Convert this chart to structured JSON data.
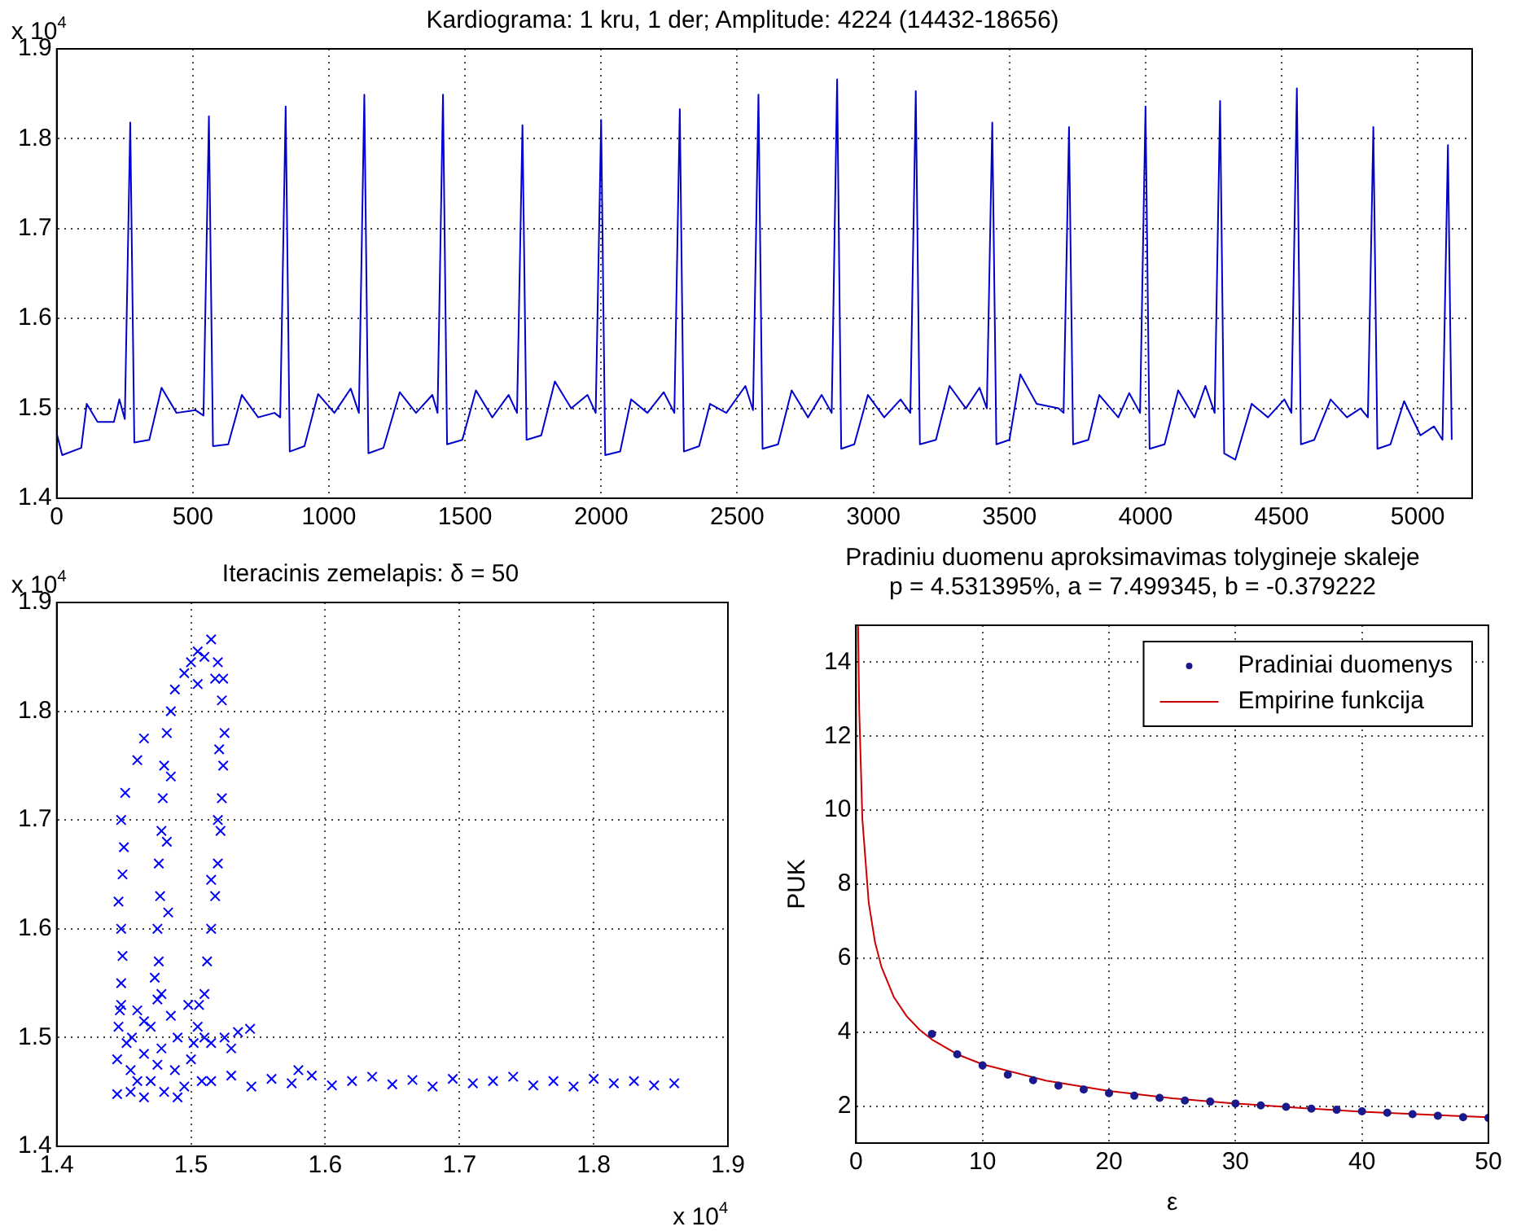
{
  "chart_data": [
    {
      "type": "line",
      "title": "Kardiograma: 1 kru, 1 der; Amplitude: 4224 (14432-18656)",
      "color": "#0000cc",
      "grid": true,
      "annotations": [
        "x 10$^{4}$"
      ],
      "xlim": [
        0,
        5200
      ],
      "xticks": [
        0,
        500,
        1000,
        1500,
        2000,
        2500,
        3000,
        3500,
        4000,
        4500,
        5000
      ],
      "ylim": [
        1.4,
        1.9
      ],
      "yticks": [
        1.4,
        1.5,
        1.6,
        1.7,
        1.8,
        1.9
      ],
      "x": [
        0,
        20,
        90,
        110,
        150,
        210,
        230,
        250,
        270,
        285,
        340,
        385,
        440,
        510,
        539,
        559,
        574,
        630,
        680,
        740,
        800,
        821,
        841,
        856,
        910,
        960,
        1020,
        1080,
        1110,
        1130,
        1145,
        1200,
        1260,
        1320,
        1380,
        1399,
        1419,
        1434,
        1490,
        1540,
        1600,
        1660,
        1691,
        1711,
        1726,
        1780,
        1830,
        1890,
        1950,
        1980,
        2000,
        2015,
        2070,
        2110,
        2170,
        2230,
        2269,
        2289,
        2304,
        2360,
        2400,
        2460,
        2530,
        2558,
        2578,
        2593,
        2650,
        2700,
        2760,
        2810,
        2847,
        2867,
        2882,
        2930,
        2980,
        3040,
        3100,
        3136,
        3156,
        3171,
        3230,
        3280,
        3340,
        3390,
        3417,
        3437,
        3452,
        3500,
        3540,
        3600,
        3680,
        3699,
        3719,
        3734,
        3790,
        3830,
        3900,
        3940,
        3980,
        4000,
        4015,
        4070,
        4120,
        4180,
        4220,
        4254,
        4274,
        4289,
        4330,
        4390,
        4450,
        4510,
        4536,
        4556,
        4571,
        4620,
        4680,
        4740,
        4790,
        4817,
        4837,
        4852,
        4900,
        4950,
        5010,
        5060,
        5091,
        5111,
        5125
      ],
      "values": [
        1.472,
        1.448,
        1.456,
        1.505,
        1.485,
        1.485,
        1.51,
        1.488,
        1.818,
        1.462,
        1.465,
        1.523,
        1.495,
        1.498,
        1.492,
        1.825,
        1.458,
        1.46,
        1.515,
        1.49,
        1.495,
        1.49,
        1.836,
        1.452,
        1.458,
        1.516,
        1.495,
        1.522,
        1.495,
        1.849,
        1.45,
        1.456,
        1.518,
        1.495,
        1.515,
        1.495,
        1.849,
        1.46,
        1.465,
        1.52,
        1.49,
        1.515,
        1.495,
        1.815,
        1.465,
        1.47,
        1.53,
        1.5,
        1.515,
        1.495,
        1.821,
        1.448,
        1.452,
        1.51,
        1.495,
        1.518,
        1.495,
        1.833,
        1.452,
        1.458,
        1.505,
        1.495,
        1.525,
        1.498,
        1.849,
        1.455,
        1.46,
        1.52,
        1.49,
        1.515,
        1.495,
        1.866,
        1.455,
        1.46,
        1.515,
        1.49,
        1.51,
        1.495,
        1.853,
        1.46,
        1.465,
        1.525,
        1.5,
        1.523,
        1.5,
        1.818,
        1.46,
        1.465,
        1.538,
        1.505,
        1.5,
        1.495,
        1.813,
        1.46,
        1.465,
        1.515,
        1.49,
        1.517,
        1.495,
        1.836,
        1.455,
        1.46,
        1.52,
        1.49,
        1.525,
        1.495,
        1.842,
        1.45,
        1.443,
        1.505,
        1.49,
        1.51,
        1.495,
        1.856,
        1.46,
        1.465,
        1.51,
        1.49,
        1.5,
        1.49,
        1.813,
        1.455,
        1.46,
        1.508,
        1.47,
        1.48,
        1.465,
        1.793,
        1.465
      ]
    },
    {
      "type": "scatter",
      "title": "Iteracinis zemelapis: δ = 50",
      "color": "#0000ff",
      "marker": "cross",
      "grid": true,
      "annotations": [
        "x 10$^{4}$",
        "x 10$^{4}$"
      ],
      "xlim": [
        1.4,
        1.9
      ],
      "xticks": [
        1.4,
        1.5,
        1.6,
        1.7,
        1.8,
        1.9
      ],
      "ylim": [
        1.4,
        1.9
      ],
      "yticks": [
        1.4,
        1.5,
        1.6,
        1.7,
        1.8,
        1.9
      ],
      "x": [
        1.445,
        1.445,
        1.446,
        1.448,
        1.455,
        1.455,
        1.456,
        1.46,
        1.465,
        1.465,
        1.47,
        1.47,
        1.475,
        1.478,
        1.48,
        1.485,
        1.488,
        1.49,
        1.495,
        1.498,
        1.5,
        1.505,
        1.508,
        1.51,
        1.46,
        1.475,
        1.452,
        1.49,
        1.502,
        1.465,
        1.515,
        1.53,
        1.545,
        1.56,
        1.575,
        1.59,
        1.605,
        1.62,
        1.635,
        1.65,
        1.665,
        1.68,
        1.695,
        1.71,
        1.725,
        1.74,
        1.755,
        1.77,
        1.785,
        1.8,
        1.815,
        1.83,
        1.845,
        1.86,
        1.58,
        1.515,
        1.525,
        1.535,
        1.544,
        1.53,
        1.478,
        1.476,
        1.475,
        1.477,
        1.476,
        1.478,
        1.479,
        1.48,
        1.482,
        1.485,
        1.488,
        1.473,
        1.483,
        1.482,
        1.485,
        1.51,
        1.512,
        1.515,
        1.518,
        1.52,
        1.522,
        1.523,
        1.524,
        1.525,
        1.523,
        1.506,
        1.515,
        1.52,
        1.521,
        1.524,
        1.495,
        1.5,
        1.505,
        1.51,
        1.515,
        1.52,
        1.505,
        1.518,
        1.447,
        1.448,
        1.449,
        1.448,
        1.446,
        1.449,
        1.45,
        1.448,
        1.451,
        1.46,
        1.465
      ],
      "values": [
        1.448,
        1.48,
        1.51,
        1.53,
        1.45,
        1.47,
        1.5,
        1.525,
        1.445,
        1.485,
        1.51,
        1.46,
        1.535,
        1.49,
        1.45,
        1.52,
        1.47,
        1.5,
        1.455,
        1.53,
        1.48,
        1.51,
        1.46,
        1.5,
        1.46,
        1.475,
        1.495,
        1.445,
        1.495,
        1.515,
        1.46,
        1.465,
        1.455,
        1.462,
        1.458,
        1.465,
        1.456,
        1.46,
        1.464,
        1.457,
        1.461,
        1.455,
        1.462,
        1.458,
        1.46,
        1.464,
        1.456,
        1.46,
        1.455,
        1.462,
        1.458,
        1.46,
        1.456,
        1.458,
        1.47,
        1.495,
        1.5,
        1.505,
        1.508,
        1.49,
        1.54,
        1.57,
        1.6,
        1.63,
        1.66,
        1.69,
        1.72,
        1.75,
        1.78,
        1.8,
        1.82,
        1.555,
        1.615,
        1.68,
        1.74,
        1.54,
        1.57,
        1.6,
        1.63,
        1.66,
        1.69,
        1.72,
        1.75,
        1.78,
        1.81,
        1.53,
        1.645,
        1.7,
        1.765,
        1.83,
        1.835,
        1.845,
        1.855,
        1.85,
        1.866,
        1.845,
        1.825,
        1.83,
        1.525,
        1.55,
        1.575,
        1.6,
        1.625,
        1.65,
        1.675,
        1.7,
        1.725,
        1.755,
        1.775
      ]
    },
    {
      "type": "scatter",
      "title": "Pradiniu duomenu aproksimavimas tolygineje skaleje",
      "subtitle": "p = 4.531395%, a = 7.499345, b = -0.379222",
      "xlabel": "ε",
      "ylabel": "PUK",
      "grid": true,
      "legend": "top right",
      "xlim": [
        0,
        50
      ],
      "xticks": [
        0,
        10,
        20,
        30,
        40,
        50
      ],
      "ylim": [
        1,
        15
      ],
      "yticks": [
        {
          "value": 1,
          "label": null
        },
        2,
        4,
        6,
        8,
        10,
        12,
        14
      ],
      "series": [
        {
          "name": "Pradiniai duomenys",
          "color": "#1a1a8c",
          "marker": "circle",
          "x": [
            6,
            8,
            10,
            12,
            14,
            16,
            18,
            20,
            22,
            24,
            26,
            28,
            30,
            32,
            34,
            36,
            38,
            40,
            42,
            44,
            46,
            48,
            50
          ],
          "values": [
            3.95,
            3.4,
            3.1,
            2.85,
            2.7,
            2.55,
            2.45,
            2.35,
            2.28,
            2.22,
            2.15,
            2.12,
            2.07,
            2.02,
            1.98,
            1.93,
            1.9,
            1.86,
            1.82,
            1.78,
            1.74,
            1.7,
            1.68
          ]
        },
        {
          "name": "Empirine funkcija",
          "type": "line",
          "marker": "none",
          "color": "#cc0000",
          "x": [
            0.16,
            0.25,
            0.5,
            1,
            1.5,
            2,
            3,
            4,
            5,
            6,
            8,
            10,
            15,
            20,
            25,
            30,
            35,
            40,
            45,
            50
          ],
          "values": [
            15,
            12.7,
            9.75,
            7.5,
            6.43,
            5.77,
            4.94,
            4.43,
            4.07,
            3.8,
            3.4,
            3.13,
            2.69,
            2.41,
            2.21,
            2.07,
            1.95,
            1.85,
            1.77,
            1.7
          ]
        }
      ]
    }
  ]
}
